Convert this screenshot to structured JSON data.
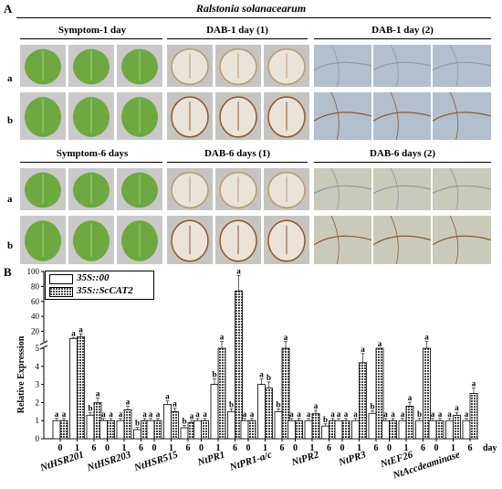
{
  "panel_a": {
    "label": "A",
    "title": "Ralstonia solanacearum",
    "groups": [
      {
        "title": "Symptom-1 day"
      },
      {
        "title": "DAB-1 day (1)"
      },
      {
        "title": "DAB-1 day (2)"
      },
      {
        "title": "Symptom-6 days"
      },
      {
        "title": "DAB-6 days (1)"
      },
      {
        "title": "DAB-6 days (2)"
      }
    ],
    "row_labels": [
      "a",
      "b",
      "a",
      "b"
    ]
  },
  "panel_b": {
    "label": "B",
    "legend": [
      "35S::00",
      "35S::ScCAT2"
    ],
    "day_label": "day",
    "genes": [
      "NtHSR201",
      "NtHSR203",
      "NtHSR515",
      "NtPR1",
      "NtPR1-a/c",
      "NtPR2",
      "NtPR3",
      "NtEF26",
      "NtAccdeaminase"
    ],
    "day_ticks": [
      "0",
      "1",
      "6"
    ],
    "colors": {
      "bar_empty": "#ffffff",
      "bar_hatched": "#6a6a6a",
      "leaf_green": "#6da840",
      "stain_brown": "#8c5a30"
    }
  },
  "chart_data": {
    "type": "bar",
    "ylabel": "Relative Expression",
    "upper_ylim": [
      6,
      100
    ],
    "upper_ticks": [
      "20",
      "40",
      "60",
      "80",
      "100"
    ],
    "lower_ylim": [
      0,
      5
    ],
    "lower_ticks": [
      "0",
      "1",
      "2",
      "3",
      "4",
      "5"
    ],
    "xlabel": "day",
    "categories": [
      "NtHSR201 0",
      "NtHSR201 1",
      "NtHSR201 6",
      "NtHSR203 0",
      "NtHSR203 1",
      "NtHSR203 6",
      "NtHSR515 0",
      "NtHSR515 1",
      "NtHSR515 6",
      "NtPR1 0",
      "NtPR1 1",
      "NtPR1 6",
      "NtPR1-a/c 0",
      "NtPR1-a/c 1",
      "NtPR1-a/c 6",
      "NtPR2 0",
      "NtPR2 1",
      "NtPR2 6",
      "NtPR3 0",
      "NtPR3 1",
      "NtPR3 6",
      "NtEF26 0",
      "NtEF26 1",
      "NtEF26 6",
      "NtAccdeaminase 0",
      "NtAccdeaminase 1",
      "NtAccdeaminase 6"
    ],
    "series": [
      {
        "name": "35S::00",
        "values": [
          1,
          10.5,
          1.3,
          1,
          1,
          0.5,
          1,
          1.9,
          0.6,
          1,
          3,
          1.5,
          1,
          3,
          1.5,
          1,
          1,
          0.7,
          1,
          1,
          1.4,
          1,
          1,
          1,
          1,
          1,
          1
        ],
        "letters": [
          "a",
          "a",
          "b",
          "a",
          "a",
          "b",
          "a",
          "a",
          "b",
          "a",
          "b",
          "b",
          "a",
          "a",
          "b",
          "a",
          "a",
          "b",
          "a",
          "a",
          "b",
          "a",
          "a",
          "b",
          "a",
          "a",
          "a"
        ]
      },
      {
        "name": "35S::ScCAT2",
        "values": [
          1,
          13,
          2,
          1,
          1.6,
          1,
          1,
          1.5,
          0.9,
          1,
          5.8,
          74,
          1,
          2.8,
          5.6,
          1,
          1.4,
          1,
          1,
          4.2,
          5,
          1,
          1.8,
          5.7,
          1,
          1.3,
          2.5
        ],
        "letters": [
          "a",
          "a",
          "a",
          "a",
          "a",
          "a",
          "a",
          "a",
          "a",
          "a",
          "a",
          "a",
          "a",
          "b",
          "a",
          "a",
          "a",
          "a",
          "a",
          "a",
          "a",
          "a",
          "a",
          "a",
          "a",
          "a",
          "a"
        ]
      }
    ]
  }
}
